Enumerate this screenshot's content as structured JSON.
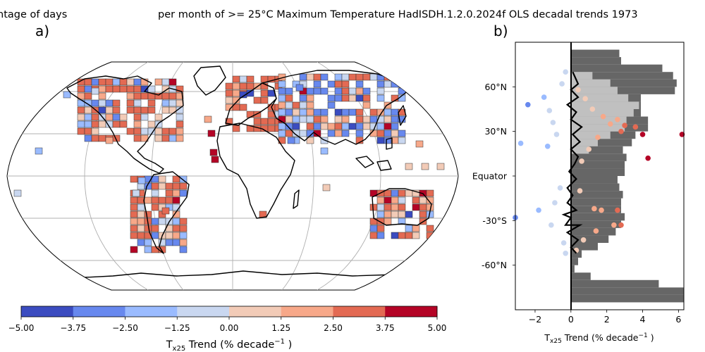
{
  "title": {
    "left": "ntage of days",
    "right": "per month of >= 25°C Maximum Temperature HadISDH.1.2.0.2024f OLS decadal trends 1973"
  },
  "panel_a": {
    "label": "a)",
    "colorbar": {
      "ticks": [
        "-5.00",
        "-3.75",
        "-2.50",
        "-1.25",
        "0.00",
        "1.25",
        "2.50",
        "3.75",
        "5.00"
      ],
      "colors": [
        "#3b4cc0",
        "#6788ee",
        "#9abbff",
        "#c9d7f0",
        "#f2cbb7",
        "#f7a889",
        "#e36a53",
        "#b40426"
      ],
      "label_base": "T",
      "label_sub": "x25",
      "label_rest": " Trend (% decade",
      "label_sup": "−1",
      "label_end": " )"
    }
  },
  "panel_b": {
    "label": "b)",
    "xlabel_base": "T",
    "xlabel_sub": "x25",
    "xlabel_rest": " Trend (% decade",
    "xlabel_sup": "−1",
    "xlabel_end": " )"
  },
  "chart_data": {
    "type": "scatter",
    "xlim": [
      -3.1,
      6.3
    ],
    "ylim": [
      -90,
      90
    ],
    "x_ticks": [
      -2,
      0,
      2,
      4,
      6
    ],
    "x_tick_labels": [
      "−2",
      "0",
      "2",
      "4",
      "6"
    ],
    "y_ticks": [
      60,
      30,
      0,
      -30,
      -60
    ],
    "y_tick_labels": [
      "60°N",
      "30°N",
      "Equator",
      "-30°S",
      "-60°N"
    ],
    "points": [
      {
        "x": -2.4,
        "y": 48,
        "c": "#6788ee"
      },
      {
        "x": -2.8,
        "y": 22,
        "c": "#9abbff"
      },
      {
        "x": -3.1,
        "y": -28,
        "c": "#6788ee"
      },
      {
        "x": -1.8,
        "y": -23,
        "c": "#9abbff"
      },
      {
        "x": -1.5,
        "y": 53,
        "c": "#9abbff"
      },
      {
        "x": -1.2,
        "y": 44,
        "c": "#c9d7f0"
      },
      {
        "x": -1.0,
        "y": 36,
        "c": "#c9d7f0"
      },
      {
        "x": -0.8,
        "y": 28,
        "c": "#c9d7f0"
      },
      {
        "x": -1.3,
        "y": 20,
        "c": "#9abbff"
      },
      {
        "x": -0.5,
        "y": 62,
        "c": "#c9d7f0"
      },
      {
        "x": -0.3,
        "y": 70,
        "c": "#c9d7f0"
      },
      {
        "x": -0.6,
        "y": -8,
        "c": "#c9d7f0"
      },
      {
        "x": -0.9,
        "y": -18,
        "c": "#c9d7f0"
      },
      {
        "x": -1.1,
        "y": -33,
        "c": "#c9d7f0"
      },
      {
        "x": -0.4,
        "y": -45,
        "c": "#c9d7f0"
      },
      {
        "x": -0.3,
        "y": -52,
        "c": "#c9d7f0"
      },
      {
        "x": 0.4,
        "y": 58,
        "c": "#f2cbb7"
      },
      {
        "x": 0.8,
        "y": 52,
        "c": "#f2cbb7"
      },
      {
        "x": 1.2,
        "y": 45,
        "c": "#f2cbb7"
      },
      {
        "x": 1.8,
        "y": 40,
        "c": "#f7a889"
      },
      {
        "x": 2.2,
        "y": 35,
        "c": "#f7a889"
      },
      {
        "x": 2.6,
        "y": 38,
        "c": "#f7a889"
      },
      {
        "x": 3.0,
        "y": 34,
        "c": "#e36a53"
      },
      {
        "x": 2.8,
        "y": 30,
        "c": "#e36a53"
      },
      {
        "x": 3.6,
        "y": 33,
        "c": "#e36a53"
      },
      {
        "x": 4.0,
        "y": 28,
        "c": "#b40426"
      },
      {
        "x": 6.2,
        "y": 28,
        "c": "#b40426"
      },
      {
        "x": 4.3,
        "y": 12,
        "c": "#b40426"
      },
      {
        "x": 1.5,
        "y": 26,
        "c": "#f7a889"
      },
      {
        "x": 1.0,
        "y": 18,
        "c": "#f2cbb7"
      },
      {
        "x": 0.6,
        "y": 10,
        "c": "#f2cbb7"
      },
      {
        "x": 0.5,
        "y": -10,
        "c": "#f2cbb7"
      },
      {
        "x": 1.3,
        "y": -22,
        "c": "#f7a889"
      },
      {
        "x": 1.7,
        "y": -23,
        "c": "#f7a889"
      },
      {
        "x": 2.6,
        "y": -23,
        "c": "#e36a53"
      },
      {
        "x": 2.4,
        "y": -33,
        "c": "#f7a889"
      },
      {
        "x": 2.8,
        "y": -33,
        "c": "#e36a53"
      },
      {
        "x": 1.4,
        "y": -37,
        "c": "#f7a889"
      },
      {
        "x": 0.7,
        "y": -43,
        "c": "#f2cbb7"
      },
      {
        "x": 0.3,
        "y": -50,
        "c": "#f2cbb7"
      }
    ],
    "line": [
      [
        0.1,
        70
      ],
      [
        0.4,
        62
      ],
      [
        0.0,
        58
      ],
      [
        0.4,
        53
      ],
      [
        -0.2,
        48
      ],
      [
        0.3,
        43
      ],
      [
        0.0,
        38
      ],
      [
        0.6,
        33
      ],
      [
        0.1,
        28
      ],
      [
        0.5,
        23
      ],
      [
        0.0,
        18
      ],
      [
        0.4,
        13
      ],
      [
        0.2,
        8
      ],
      [
        -0.1,
        3
      ],
      [
        0.3,
        -2
      ],
      [
        -0.2,
        -8
      ],
      [
        0.1,
        -13
      ],
      [
        -0.2,
        -18
      ],
      [
        0.3,
        -23
      ],
      [
        -0.4,
        -26
      ],
      [
        0.0,
        -28
      ],
      [
        -0.3,
        -33
      ],
      [
        0.5,
        -33
      ],
      [
        -0.2,
        -38
      ],
      [
        0.4,
        -43
      ],
      [
        0.0,
        -48
      ],
      [
        0.3,
        -52
      ]
    ],
    "hist_dark": [
      [
        -85,
        6.3
      ],
      [
        -80,
        6.3
      ],
      [
        -75,
        4.9
      ],
      [
        -70,
        1.1
      ],
      [
        -65,
        0.2
      ],
      [
        -60,
        0.4
      ],
      [
        -55,
        0.6
      ],
      [
        -50,
        1.5
      ],
      [
        -45,
        2.1
      ],
      [
        -40,
        2.5
      ],
      [
        -35,
        2.8
      ],
      [
        -30,
        3.0
      ],
      [
        -25,
        2.8
      ],
      [
        -20,
        2.8
      ],
      [
        -15,
        2.9
      ],
      [
        -10,
        2.7
      ],
      [
        -5,
        2.6
      ],
      [
        0,
        3.0
      ],
      [
        5,
        3.0
      ],
      [
        10,
        3.1
      ],
      [
        15,
        2.9
      ],
      [
        20,
        3.4
      ],
      [
        25,
        3.6
      ],
      [
        30,
        4.3
      ],
      [
        35,
        4.3
      ],
      [
        40,
        3.9
      ],
      [
        45,
        3.9
      ],
      [
        50,
        3.9
      ],
      [
        55,
        5.8
      ],
      [
        60,
        5.9
      ],
      [
        65,
        5.7
      ],
      [
        70,
        5.1
      ],
      [
        75,
        2.8
      ],
      [
        80,
        2.7
      ]
    ],
    "hist_light": [
      [
        15,
        1.0
      ],
      [
        20,
        1.5
      ],
      [
        25,
        2.2
      ],
      [
        30,
        3.0
      ],
      [
        35,
        3.1
      ],
      [
        40,
        3.5
      ],
      [
        45,
        3.8
      ],
      [
        50,
        3.2
      ],
      [
        55,
        2.6
      ],
      [
        60,
        2.2
      ],
      [
        65,
        1.2
      ]
    ]
  }
}
